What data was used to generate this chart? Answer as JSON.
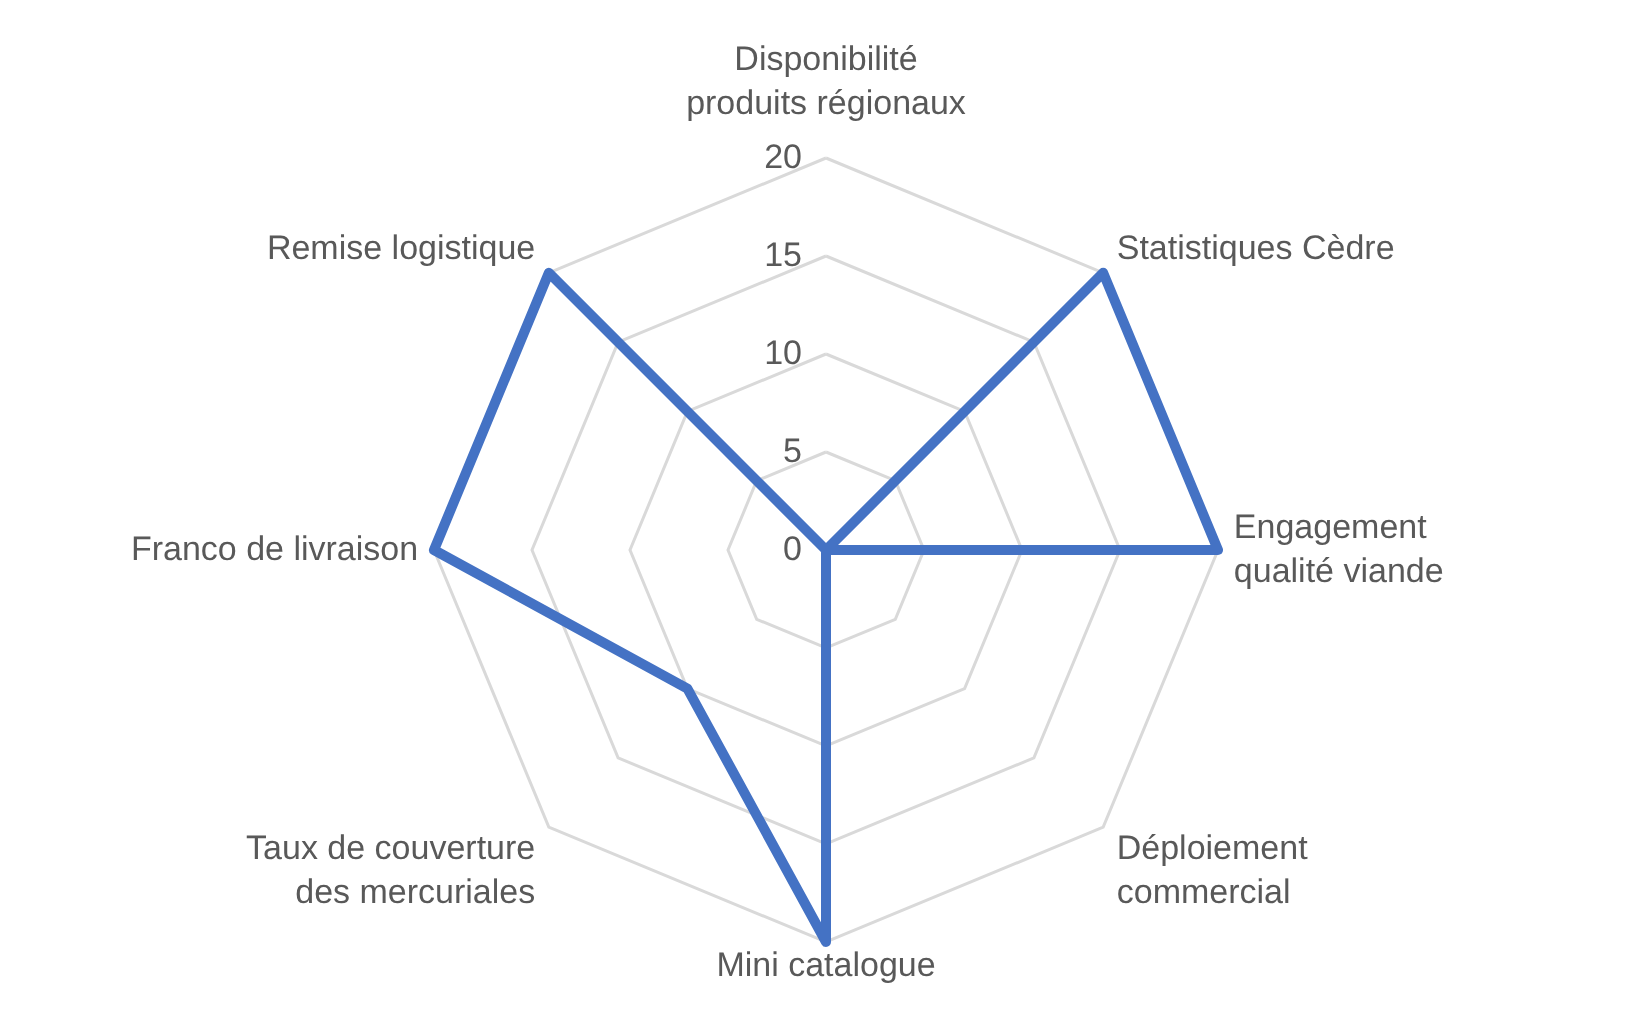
{
  "chart_data": {
    "type": "radar",
    "categories": [
      "Disponibilité produits régionaux",
      "Statistiques Cèdre",
      "Engagement qualité viande",
      "Déploiement commercial",
      "Mini catalogue",
      "Taux de couverture des mercuriales",
      "Franco de livraison",
      "Remise logistique"
    ],
    "series": [
      {
        "color": "#4472c4",
        "values": [
          0,
          20,
          20,
          0,
          20,
          10,
          20,
          20
        ]
      }
    ],
    "ylim": [
      0,
      20
    ],
    "yticks": [
      0,
      5,
      10,
      15,
      20
    ],
    "grid": true
  }
}
